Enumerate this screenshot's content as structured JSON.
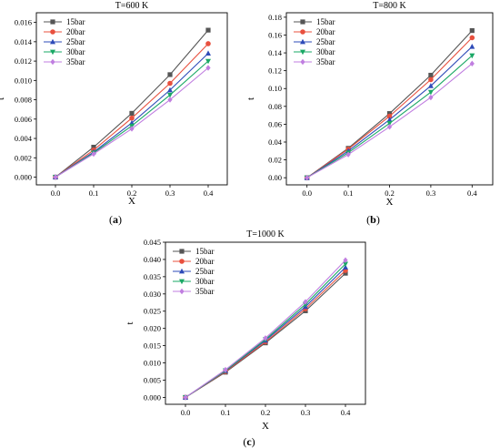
{
  "chart_data": [
    {
      "panel_label": "(a)",
      "type": "line",
      "title": "T=600 K",
      "xlabel": "X",
      "ylabel": "t",
      "x": [
        0.0,
        0.1,
        0.2,
        0.3,
        0.4
      ],
      "x_ticks": [
        "0.0",
        "0.1",
        "0.2",
        "0.3",
        "0.4"
      ],
      "xlim": [
        -0.05,
        0.45
      ],
      "y_ticks": [
        "0.000",
        "0.002",
        "0.004",
        "0.006",
        "0.008",
        "0.010",
        "0.012",
        "0.014",
        "0.016"
      ],
      "ylim": [
        -0.0008,
        0.017
      ],
      "legend_position": "top-left",
      "series": [
        {
          "name": "15bar",
          "color": "#555555",
          "marker": "square",
          "values": [
            0.0,
            0.0031,
            0.0066,
            0.0106,
            0.0152
          ]
        },
        {
          "name": "20bar",
          "color": "#e8503e",
          "marker": "circle",
          "values": [
            0.0,
            0.0028,
            0.0061,
            0.0097,
            0.0138
          ]
        },
        {
          "name": "25bar",
          "color": "#2e4bb8",
          "marker": "triangle-up",
          "values": [
            0.0,
            0.0026,
            0.0056,
            0.009,
            0.0128
          ]
        },
        {
          "name": "30bar",
          "color": "#1aa865",
          "marker": "triangle-down",
          "values": [
            0.0,
            0.0025,
            0.0053,
            0.0085,
            0.012
          ]
        },
        {
          "name": "35bar",
          "color": "#c07ee0",
          "marker": "diamond",
          "values": [
            0.0,
            0.0024,
            0.005,
            0.008,
            0.0113
          ]
        }
      ]
    },
    {
      "panel_label": "(b)",
      "type": "line",
      "title": "T=800 K",
      "xlabel": "X",
      "ylabel": "t",
      "x": [
        0.0,
        0.1,
        0.2,
        0.3,
        0.4
      ],
      "x_ticks": [
        "0.0",
        "0.1",
        "0.2",
        "0.3",
        "0.4"
      ],
      "xlim": [
        -0.05,
        0.45
      ],
      "y_ticks": [
        "0.00",
        "0.02",
        "0.04",
        "0.06",
        "0.08",
        "0.10",
        "0.12",
        "0.14",
        "0.16",
        "0.18"
      ],
      "ylim": [
        -0.008,
        0.185
      ],
      "legend_position": "top-left",
      "series": [
        {
          "name": "15bar",
          "color": "#555555",
          "marker": "square",
          "values": [
            0.0,
            0.033,
            0.072,
            0.115,
            0.165
          ]
        },
        {
          "name": "20bar",
          "color": "#e8503e",
          "marker": "circle",
          "values": [
            0.0,
            0.032,
            0.069,
            0.11,
            0.157
          ]
        },
        {
          "name": "25bar",
          "color": "#2e4bb8",
          "marker": "triangle-up",
          "values": [
            0.0,
            0.03,
            0.065,
            0.103,
            0.147
          ]
        },
        {
          "name": "30bar",
          "color": "#1aa865",
          "marker": "triangle-down",
          "values": [
            0.0,
            0.028,
            0.061,
            0.096,
            0.137
          ]
        },
        {
          "name": "35bar",
          "color": "#c07ee0",
          "marker": "diamond",
          "values": [
            0.0,
            0.026,
            0.057,
            0.09,
            0.128
          ]
        }
      ]
    },
    {
      "panel_label": "(c)",
      "type": "line",
      "title": "T=1000 K",
      "xlabel": "X",
      "ylabel": "t",
      "x": [
        0.0,
        0.1,
        0.2,
        0.3,
        0.4
      ],
      "x_ticks": [
        "0.0",
        "0.1",
        "0.2",
        "0.3",
        "0.4"
      ],
      "xlim": [
        -0.05,
        0.45
      ],
      "y_ticks": [
        "0.000",
        "0.005",
        "0.010",
        "0.015",
        "0.020",
        "0.025",
        "0.030",
        "0.035",
        "0.040",
        "0.045"
      ],
      "ylim": [
        -0.002,
        0.045
      ],
      "legend_position": "top-left",
      "series": [
        {
          "name": "15bar",
          "color": "#555555",
          "marker": "square",
          "values": [
            0.0,
            0.0073,
            0.0158,
            0.0251,
            0.036
          ]
        },
        {
          "name": "20bar",
          "color": "#e8503e",
          "marker": "circle",
          "values": [
            0.0,
            0.0075,
            0.0161,
            0.0257,
            0.0368
          ]
        },
        {
          "name": "25bar",
          "color": "#2e4bb8",
          "marker": "triangle-up",
          "values": [
            0.0,
            0.0077,
            0.0165,
            0.0263,
            0.0377
          ]
        },
        {
          "name": "30bar",
          "color": "#1aa865",
          "marker": "triangle-down",
          "values": [
            0.0,
            0.0078,
            0.0168,
            0.027,
            0.0387
          ]
        },
        {
          "name": "35bar",
          "color": "#c07ee0",
          "marker": "diamond",
          "values": [
            0.0,
            0.008,
            0.0172,
            0.0277,
            0.0398
          ]
        }
      ]
    }
  ]
}
